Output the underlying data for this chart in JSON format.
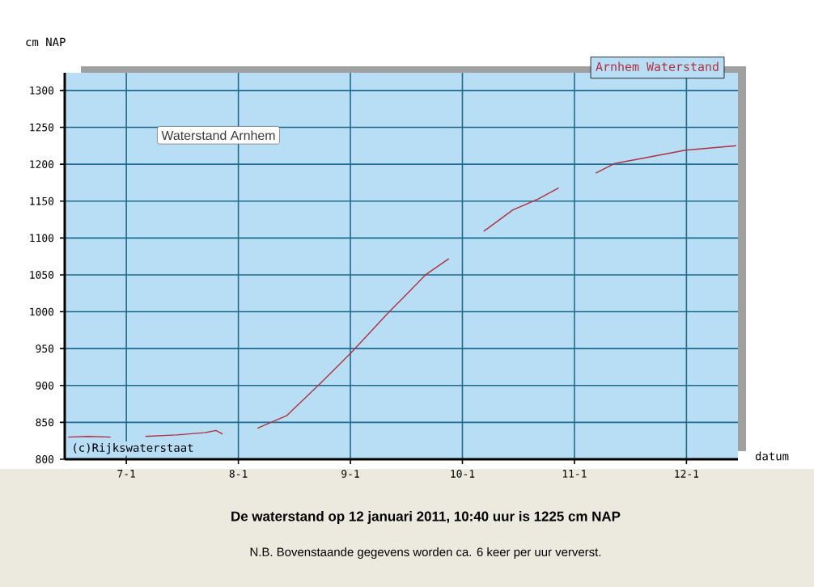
{
  "chart_data": {
    "type": "line",
    "title": "De waterstand op 12 januari 2011, 10:40 uur is 1225 cm NAP",
    "subtitle": "N.B. Bovenstaande gegevens worden ca. 6 keer per uur ververst.",
    "xlabel": "datum",
    "ylabel": "cm NAP",
    "annotations": [
      "Waterstand Arnhem",
      "(c)Rijkswaterstaat"
    ],
    "x": [
      "2011-01-06T11:31",
      "2011-01-06T15:50",
      "2011-01-06T20:38",
      "2011-01-07T00:00",
      "2011-01-07T04:05",
      "2011-01-07T10:48",
      "2011-01-07T16:48",
      "2011-01-07T19:12",
      "2011-01-07T20:38",
      "2011-01-08T00:00",
      "2011-01-08T04:05",
      "2011-01-08T10:19",
      "2011-01-08T17:17",
      "2011-01-09T00:14",
      "2011-01-09T08:10",
      "2011-01-09T12:43",
      "2011-01-09T16:05",
      "2011-01-09T21:07",
      "2011-01-10T00:00",
      "2011-01-10T04:34",
      "2011-01-10T10:48",
      "2011-01-10T16:19",
      "2011-01-10T20:38",
      "2011-01-11T00:00",
      "2011-01-11T04:34",
      "2011-01-11T08:38",
      "2011-01-11T14:38",
      "2011-01-11T23:46",
      "2011-01-12T10:40"
    ],
    "series": [
      {
        "name": "Arnhem Waterstand",
        "color": "#b03040",
        "values": [
          830,
          831,
          830,
          null,
          831,
          833,
          836,
          839,
          834,
          null,
          842,
          859,
          901,
          945,
          999,
          1028,
          1050,
          1072,
          null,
          1109,
          1138,
          1153,
          1168,
          null,
          1188,
          1201,
          1208,
          1219,
          1225
        ]
      }
    ],
    "xlim": [
      "2011-01-06T10:48",
      "2011-01-12T11:02"
    ],
    "ylim": [
      800,
      1324
    ],
    "xticks": [
      {
        "value": "2011-01-07",
        "label": "7-1"
      },
      {
        "value": "2011-01-08",
        "label": "8-1"
      },
      {
        "value": "2011-01-09",
        "label": "9-1"
      },
      {
        "value": "2011-01-10",
        "label": "10-1"
      },
      {
        "value": "2011-01-11",
        "label": "11-1"
      },
      {
        "value": "2011-01-12",
        "label": "12-1"
      }
    ],
    "yticks": [
      800,
      850,
      900,
      950,
      1000,
      1050,
      1100,
      1150,
      1200,
      1250,
      1300
    ],
    "grid": true,
    "legend": "top right",
    "line_style": "solid"
  }
}
